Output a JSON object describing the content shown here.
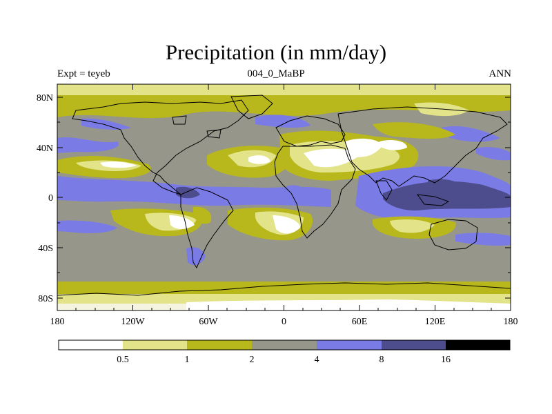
{
  "title": "Precipitation (in mm/day)",
  "left_label": "Expt = teyeb",
  "center_label": "004_0_MaBP",
  "right_label": "ANN",
  "lat_labels": [
    "80N",
    "40N",
    "0",
    "40S",
    "80S"
  ],
  "lon_labels": [
    "180",
    "120W",
    "60W",
    "0",
    "60E",
    "120E",
    "180"
  ],
  "colorbar": {
    "labels": [
      "0.5",
      "1",
      "2",
      "4",
      "8",
      "16"
    ],
    "colors": [
      "#ffffff",
      "#e3e38a",
      "#b8b81c",
      "#96968a",
      "#7b7be6",
      "#4d4d8e",
      "#000000"
    ]
  },
  "palette": {
    "white": "#ffffff",
    "pale_yellow": "#e3e38a",
    "olive": "#b8b81c",
    "grey": "#96968a",
    "blue": "#7b7be6",
    "dark_blue": "#4d4d8e",
    "black": "#000000"
  }
}
